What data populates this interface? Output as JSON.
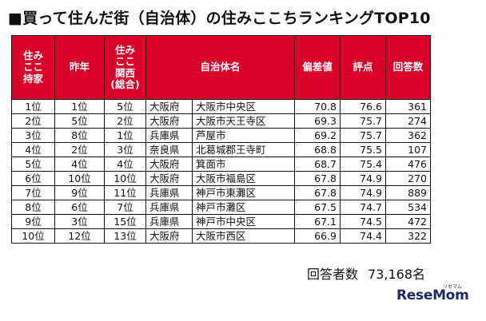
{
  "title": "■買って住んだ街（自治体）の住みここちランキングTOP10",
  "headers": {
    "rank_lines": [
      "住み",
      "ここ",
      "持家"
    ],
    "last_year": "昨年",
    "kansai_lines": [
      "住み",
      "ここ",
      "関西",
      "(総合)"
    ],
    "municipality": "自治体名",
    "deviation": "偏差値",
    "score": "評点",
    "respondents": "回答数"
  },
  "rows": [
    {
      "rank": "1位",
      "last": "1位",
      "kansai": "5位",
      "pref": "大阪府",
      "city": "大阪市中央区",
      "dev": "70.8",
      "score": "76.6",
      "count": "361"
    },
    {
      "rank": "2位",
      "last": "5位",
      "kansai": "2位",
      "pref": "大阪府",
      "city": "大阪市天王寺区",
      "dev": "69.3",
      "score": "75.7",
      "count": "274"
    },
    {
      "rank": "3位",
      "last": "8位",
      "kansai": "1位",
      "pref": "兵庫県",
      "city": "芦屋市",
      "dev": "69.2",
      "score": "75.7",
      "count": "362"
    },
    {
      "rank": "4位",
      "last": "2位",
      "kansai": "3位",
      "pref": "奈良県",
      "city": "北葛城郡王寺町",
      "dev": "68.8",
      "score": "75.5",
      "count": "107"
    },
    {
      "rank": "5位",
      "last": "4位",
      "kansai": "4位",
      "pref": "大阪府",
      "city": "箕面市",
      "dev": "68.7",
      "score": "75.4",
      "count": "476"
    },
    {
      "rank": "6位",
      "last": "10位",
      "kansai": "10位",
      "pref": "大阪府",
      "city": "大阪市福島区",
      "dev": "67.8",
      "score": "74.9",
      "count": "270"
    },
    {
      "rank": "7位",
      "last": "9位",
      "kansai": "11位",
      "pref": "兵庫県",
      "city": "神戸市東灘区",
      "dev": "67.8",
      "score": "74.9",
      "count": "889"
    },
    {
      "rank": "8位",
      "last": "6位",
      "kansai": "7位",
      "pref": "兵庫県",
      "city": "神戸市灘区",
      "dev": "67.5",
      "score": "74.7",
      "count": "534"
    },
    {
      "rank": "9位",
      "last": "3位",
      "kansai": "15位",
      "pref": "兵庫県",
      "city": "神戸市中央区",
      "dev": "67.1",
      "score": "74.5",
      "count": "472"
    },
    {
      "rank": "10位",
      "last": "12位",
      "kansai": "13位",
      "pref": "大阪府",
      "city": "大阪市西区",
      "dev": "66.9",
      "score": "74.4",
      "count": "322"
    }
  ],
  "footer": {
    "label": "回答者数",
    "value": "73,168名"
  },
  "logo": {
    "text": "ReseMom",
    "ruby": "リセマム"
  },
  "colors": {
    "header_bg": "#d9002a",
    "header_text": "#ffffff",
    "logo": "#1b2a68"
  }
}
